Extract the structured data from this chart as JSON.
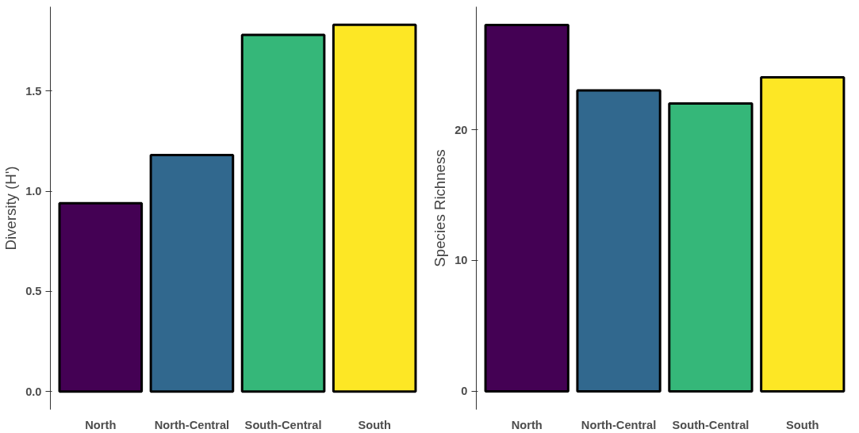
{
  "chart_data": [
    {
      "type": "bar",
      "ylabel": "Diversity (H')",
      "categories": [
        "North",
        "North-Central",
        "South-Central",
        "South"
      ],
      "values": [
        0.94,
        1.18,
        1.78,
        1.83
      ],
      "colors": [
        "#440154",
        "#31688e",
        "#35b779",
        "#fde725"
      ],
      "ylim": [
        -0.09,
        1.92
      ],
      "yticks": [
        {
          "value": 0,
          "label": "0.0"
        },
        0.5,
        {
          "value": 1,
          "label": "1.0"
        },
        1.5
      ],
      "grid": false
    },
    {
      "type": "bar",
      "ylabel": "Species Richness",
      "categories": [
        "North",
        "North-Central",
        "South-Central",
        "South"
      ],
      "values": [
        28,
        23,
        22,
        24
      ],
      "colors": [
        "#440154",
        "#31688e",
        "#35b779",
        "#fde725"
      ],
      "ylim": [
        -1.4,
        29.4
      ],
      "yticks": [
        0,
        10,
        20
      ],
      "grid": false
    }
  ]
}
